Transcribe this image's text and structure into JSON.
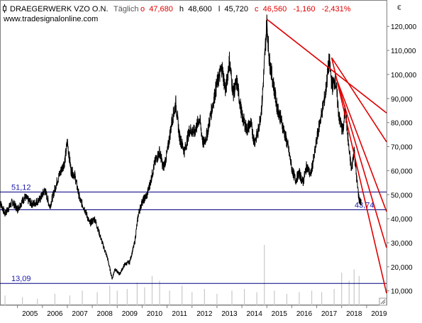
{
  "header": {
    "icon": "candlestick-icon",
    "title": "DRAEGERWERK VZO O.N.",
    "interval": "Täglich",
    "open_label": "o",
    "open": "47,680",
    "high_label": "h",
    "high": "48,600",
    "low_label": "l",
    "low": "45,720",
    "close_label": "c",
    "close": "46,560",
    "change": "-1,160",
    "change_pct": "-2,431%",
    "website": "www.tradesignalonline.com"
  },
  "colors": {
    "price": "#000000",
    "trendline": "#e00000",
    "horizontal_line": "#000080",
    "horizontal_label": "#1a1aa8",
    "change_negative": "#e00000",
    "volume": "#c8c8c8",
    "axis": "#808080"
  },
  "chart_data": {
    "type": "line",
    "title": "DRAEGERWERK VZO O.N.",
    "currency_label": "€",
    "x_ticks": [
      "2005",
      "2006",
      "2007",
      "2008",
      "2009",
      "2010",
      "2011",
      "2012",
      "2013",
      "2014",
      "2015",
      "2016",
      "2017",
      "2018",
      "2019"
    ],
    "x_range": [
      2004.3,
      2019.8
    ],
    "y_ticks": [
      "10,000",
      "20,000",
      "30,000",
      "40,000",
      "50,000",
      "60,000",
      "70,000",
      "80,000",
      "90,000",
      "100,000",
      "110,000",
      "120,000"
    ],
    "y_tick_values": [
      10,
      20,
      30,
      40,
      50,
      60,
      70,
      80,
      90,
      100,
      110,
      120
    ],
    "ylim": [
      4,
      131
    ],
    "grid": false,
    "series": [
      {
        "values": [
          [
            2004.3,
            47
          ],
          [
            2004.5,
            42
          ],
          [
            2004.8,
            47
          ],
          [
            2005.0,
            44
          ],
          [
            2005.3,
            49
          ],
          [
            2005.6,
            46
          ],
          [
            2005.9,
            48
          ],
          [
            2006.1,
            52
          ],
          [
            2006.3,
            45
          ],
          [
            2006.6,
            56
          ],
          [
            2006.9,
            64
          ],
          [
            2007.0,
            72
          ],
          [
            2007.15,
            60
          ],
          [
            2007.3,
            58
          ],
          [
            2007.5,
            48
          ],
          [
            2007.7,
            44
          ],
          [
            2007.9,
            38
          ],
          [
            2008.1,
            40
          ],
          [
            2008.4,
            30
          ],
          [
            2008.6,
            24
          ],
          [
            2008.8,
            15
          ],
          [
            2008.9,
            19
          ],
          [
            2009.1,
            17
          ],
          [
            2009.3,
            21
          ],
          [
            2009.5,
            22
          ],
          [
            2009.7,
            30
          ],
          [
            2009.85,
            42
          ],
          [
            2010.0,
            47
          ],
          [
            2010.2,
            50
          ],
          [
            2010.35,
            56
          ],
          [
            2010.5,
            63
          ],
          [
            2010.7,
            68
          ],
          [
            2010.85,
            61
          ],
          [
            2011.0,
            67
          ],
          [
            2011.2,
            81
          ],
          [
            2011.35,
            88
          ],
          [
            2011.5,
            74
          ],
          [
            2011.7,
            68
          ],
          [
            2011.9,
            77
          ],
          [
            2012.1,
            76
          ],
          [
            2012.3,
            82
          ],
          [
            2012.45,
            71
          ],
          [
            2012.6,
            75
          ],
          [
            2012.8,
            86
          ],
          [
            2013.0,
            96
          ],
          [
            2013.2,
            103
          ],
          [
            2013.35,
            93
          ],
          [
            2013.5,
            106
          ],
          [
            2013.65,
            92
          ],
          [
            2013.8,
            97
          ],
          [
            2014.0,
            83
          ],
          [
            2014.2,
            77
          ],
          [
            2014.35,
            80
          ],
          [
            2014.5,
            72
          ],
          [
            2014.65,
            76
          ],
          [
            2014.8,
            87
          ],
          [
            2014.9,
            104
          ],
          [
            2015.0,
            122
          ],
          [
            2015.1,
            106
          ],
          [
            2015.25,
            97
          ],
          [
            2015.4,
            87
          ],
          [
            2015.55,
            82
          ],
          [
            2015.7,
            76
          ],
          [
            2015.85,
            70
          ],
          [
            2016.0,
            61
          ],
          [
            2016.15,
            56
          ],
          [
            2016.3,
            59
          ],
          [
            2016.45,
            55
          ],
          [
            2016.6,
            62
          ],
          [
            2016.75,
            58
          ],
          [
            2016.9,
            66
          ],
          [
            2017.05,
            76
          ],
          [
            2017.2,
            84
          ],
          [
            2017.35,
            92
          ],
          [
            2017.5,
            106
          ],
          [
            2017.62,
            95
          ],
          [
            2017.75,
            98
          ],
          [
            2017.9,
            82
          ],
          [
            2018.05,
            76
          ],
          [
            2018.15,
            86
          ],
          [
            2018.3,
            68
          ],
          [
            2018.4,
            60
          ],
          [
            2018.5,
            69
          ],
          [
            2018.6,
            57
          ],
          [
            2018.7,
            48
          ],
          [
            2018.78,
            46.56
          ]
        ]
      }
    ],
    "volume": [
      [
        2004.5,
        6
      ],
      [
        2005.2,
        5
      ],
      [
        2005.8,
        4
      ],
      [
        2006.5,
        7
      ],
      [
        2007.1,
        6
      ],
      [
        2007.6,
        9
      ],
      [
        2008.2,
        8
      ],
      [
        2008.7,
        12
      ],
      [
        2009.0,
        9
      ],
      [
        2009.4,
        10
      ],
      [
        2009.8,
        14
      ],
      [
        2010.1,
        11
      ],
      [
        2010.4,
        18
      ],
      [
        2010.7,
        15
      ],
      [
        2011.1,
        9
      ],
      [
        2011.6,
        12
      ],
      [
        2012.0,
        8
      ],
      [
        2012.5,
        10
      ],
      [
        2013.0,
        7
      ],
      [
        2013.6,
        9
      ],
      [
        2014.1,
        10
      ],
      [
        2014.6,
        8
      ],
      [
        2014.9,
        37
      ],
      [
        2015.3,
        9
      ],
      [
        2015.8,
        7
      ],
      [
        2016.3,
        8
      ],
      [
        2016.8,
        9
      ],
      [
        2017.2,
        8
      ],
      [
        2017.7,
        10
      ],
      [
        2018.0,
        20
      ],
      [
        2018.3,
        15
      ],
      [
        2018.5,
        22
      ],
      [
        2018.7,
        18
      ]
    ],
    "horizontal_lines": [
      {
        "value": 51.12,
        "label": "51,12",
        "label_side": "left"
      },
      {
        "value": 43.74,
        "label": "43,74",
        "label_side": "right"
      },
      {
        "value": 13.09,
        "label": "13,09",
        "label_side": "left"
      }
    ],
    "trendlines": [
      {
        "from": [
          2015.0,
          123
        ],
        "to": [
          2019.8,
          84
        ]
      },
      {
        "from": [
          2017.6,
          107
        ],
        "to": [
          2019.8,
          72
        ]
      },
      {
        "from": [
          2017.6,
          107
        ],
        "to": [
          2019.8,
          9
        ]
      },
      {
        "from": [
          2017.8,
          98
        ],
        "to": [
          2019.8,
          28
        ]
      },
      {
        "from": [
          2017.8,
          98
        ],
        "to": [
          2019.8,
          43
        ]
      }
    ]
  }
}
